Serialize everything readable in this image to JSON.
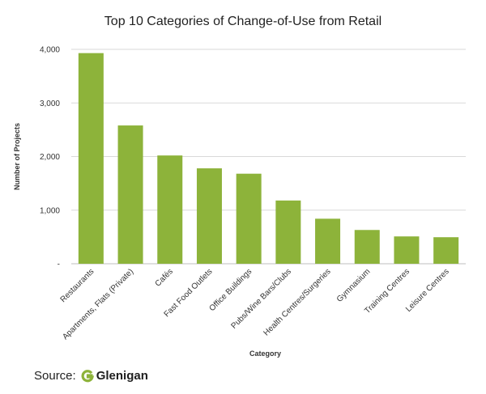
{
  "chart_data": {
    "type": "bar",
    "title": "Top 10 Categories of Change-of-Use from Retail",
    "xlabel": "Category",
    "ylabel": "Number of Projects",
    "categories": [
      "Restaurants",
      "Apartments, Flats (Private)",
      "Cafés",
      "Fast Food Outlets",
      "Office Buildings",
      "Pubs/Wine Bars/Clubs",
      "Health Centres/Surgeries",
      "Gymnasium",
      "Training Centres",
      "Leisure Centres"
    ],
    "values": [
      3930,
      2580,
      2020,
      1780,
      1680,
      1180,
      840,
      630,
      510,
      495
    ],
    "ylim": [
      0,
      4000
    ],
    "yticks": [
      0,
      1000,
      2000,
      3000,
      4000
    ],
    "ytick_labels": [
      "-",
      "1,000",
      "2,000",
      "3,000",
      "4,000"
    ],
    "grid": true,
    "bar_color": "#8db33a"
  },
  "source": {
    "label": "Source:",
    "logo_text": "Glenigan",
    "logo_color": "#8db33a"
  }
}
